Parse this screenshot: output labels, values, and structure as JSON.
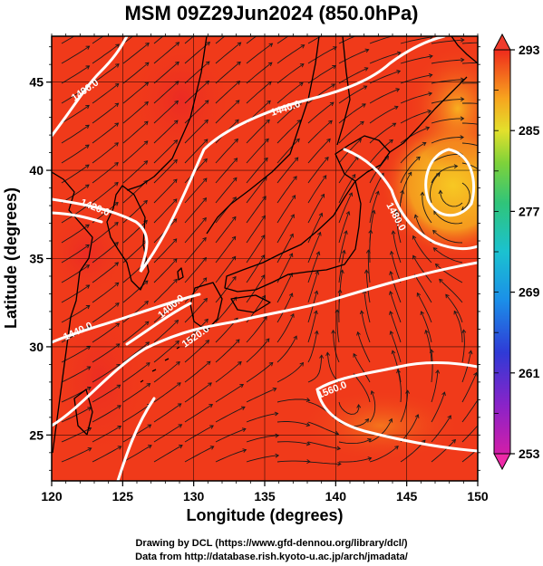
{
  "title": "MSM 09Z29Jun2024 (850.0hPa)",
  "map": {
    "xlabel": "Longitude (degrees)",
    "ylabel": "Latitude  (degrees)",
    "lon_range": [
      120,
      150
    ],
    "lat_range": [
      22.4,
      47.6
    ],
    "lon_ticks": [
      "120",
      "125",
      "130",
      "135",
      "140",
      "145",
      "150"
    ],
    "lat_ticks": [
      "25",
      "30",
      "35",
      "40",
      "45"
    ]
  },
  "colorbar": {
    "min": 253,
    "max": 293,
    "labels": [
      "293",
      "285",
      "277",
      "269",
      "261",
      "253"
    ]
  },
  "contours": [
    {
      "label": "1400.0"
    },
    {
      "label": "1440.0"
    },
    {
      "label": "1420.0"
    },
    {
      "label": "1480.0"
    },
    {
      "label": "1440.0"
    },
    {
      "label": "1400.0"
    },
    {
      "label": "1520.0"
    },
    {
      "label": "1560.0"
    }
  ],
  "footer": {
    "line1": "Drawing by DCL (https://www.gfd-dennou.org/library/dcl/)",
    "line2": "Data from http://database.rish.kyoto-u.ac.jp/arch/jmadata/"
  },
  "colors": {
    "field_base": "#f03a1a",
    "field_warm": "#f7a21e",
    "contour": "#ffffff",
    "coast": "#000000"
  }
}
